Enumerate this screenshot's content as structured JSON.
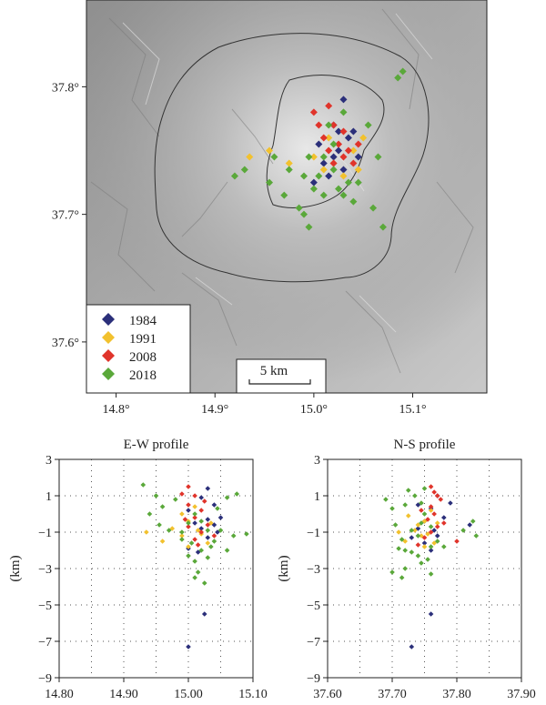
{
  "map": {
    "lon_range": [
      14.77,
      15.175
    ],
    "lat_range": [
      37.56,
      37.868
    ],
    "x_ticks": [
      14.8,
      14.9,
      15.0,
      15.1
    ],
    "x_tick_labels": [
      "14.8°",
      "14.9°",
      "15.0°",
      "15.1°"
    ],
    "y_ticks": [
      37.8,
      37.7,
      37.6
    ],
    "y_tick_labels": [
      "37.8°",
      "37.7°",
      "37.6°"
    ],
    "scale_label": "5 km",
    "legend": [
      {
        "label": "1984",
        "color": "#2b2f7a"
      },
      {
        "label": "1991",
        "color": "#f2c12e"
      },
      {
        "label": "2008",
        "color": "#e0342b"
      },
      {
        "label": "2018",
        "color": "#5aa83a"
      }
    ]
  },
  "chart_data": [
    {
      "type": "scatter",
      "title": "E-W profile",
      "xlabel": "",
      "ylabel": "(km)",
      "xlim": [
        14.8,
        15.1
      ],
      "ylim": [
        -9,
        3
      ],
      "x_tick_labels": [
        "14.80",
        "14.90",
        "15.00",
        "15.10"
      ],
      "y_tick_labels": [
        "3",
        "1",
        "−1",
        "−3",
        "−5",
        "−7",
        "−9"
      ],
      "grid": true,
      "series": [
        {
          "name": "1984",
          "color": "#2b2f7a",
          "points": [
            [
              15.0,
              -7.3
            ],
            [
              15.025,
              -5.5
            ],
            [
              15.03,
              1.4
            ],
            [
              15.02,
              0.9
            ],
            [
              15.04,
              0.5
            ],
            [
              15.03,
              -0.3
            ],
            [
              15.02,
              -0.8
            ],
            [
              15.03,
              -1.3
            ],
            [
              15.04,
              -0.6
            ],
            [
              15.0,
              -1.9
            ],
            [
              15.01,
              -0.5
            ],
            [
              15.05,
              -0.2
            ],
            [
              15.0,
              0.2
            ],
            [
              15.045,
              -1.0
            ],
            [
              15.015,
              -2.1
            ]
          ]
        },
        {
          "name": "1991",
          "color": "#f2c12e",
          "points": [
            [
              14.935,
              -1.0
            ],
            [
              14.96,
              -1.5
            ],
            [
              14.975,
              -0.8
            ],
            [
              14.99,
              -1.2
            ],
            [
              15.0,
              -0.4
            ],
            [
              15.01,
              0.4
            ],
            [
              15.02,
              -1.1
            ],
            [
              15.03,
              -1.6
            ],
            [
              15.0,
              -1.8
            ],
            [
              15.015,
              -0.9
            ],
            [
              14.99,
              0.0
            ],
            [
              15.035,
              -0.5
            ]
          ]
        },
        {
          "name": "2008",
          "color": "#e0342b",
          "points": [
            [
              15.0,
              1.5
            ],
            [
              15.01,
              1.0
            ],
            [
              15.0,
              0.5
            ],
            [
              15.02,
              0.2
            ],
            [
              15.01,
              -0.2
            ],
            [
              15.03,
              -0.6
            ],
            [
              15.0,
              -0.7
            ],
            [
              15.02,
              -1.0
            ],
            [
              15.01,
              -1.4
            ],
            [
              14.995,
              -0.3
            ],
            [
              15.025,
              0.7
            ],
            [
              15.04,
              -1.2
            ],
            [
              14.99,
              1.1
            ],
            [
              15.015,
              -1.7
            ]
          ]
        },
        {
          "name": "2018",
          "color": "#5aa83a",
          "points": [
            [
              14.93,
              1.6
            ],
            [
              14.95,
              1.0
            ],
            [
              14.96,
              0.4
            ],
            [
              14.94,
              0.0
            ],
            [
              14.955,
              -0.6
            ],
            [
              14.97,
              -0.9
            ],
            [
              14.99,
              -1.0
            ],
            [
              15.0,
              -0.5
            ],
            [
              15.01,
              0.0
            ],
            [
              15.02,
              -0.4
            ],
            [
              15.03,
              -0.9
            ],
            [
              15.04,
              -1.5
            ],
            [
              15.02,
              -2.0
            ],
            [
              15.0,
              -2.3
            ],
            [
              15.01,
              -3.5
            ],
            [
              15.015,
              -3.2
            ],
            [
              15.025,
              -3.8
            ],
            [
              15.05,
              -0.9
            ],
            [
              15.06,
              -2.0
            ],
            [
              15.07,
              -1.2
            ],
            [
              15.09,
              -1.1
            ],
            [
              15.06,
              0.9
            ],
            [
              15.075,
              1.1
            ],
            [
              14.99,
              -1.4
            ],
            [
              15.005,
              -1.6
            ],
            [
              15.035,
              -1.8
            ],
            [
              15.045,
              0.3
            ],
            [
              14.98,
              0.8
            ],
            [
              15.01,
              -2.6
            ],
            [
              15.03,
              -2.4
            ]
          ]
        }
      ]
    },
    {
      "type": "scatter",
      "title": "N-S profile",
      "xlabel": "",
      "ylabel": "(km)",
      "xlim": [
        37.6,
        37.9
      ],
      "ylim": [
        -9,
        3
      ],
      "x_tick_labels": [
        "37.60",
        "37.70",
        "37.80",
        "37.90"
      ],
      "y_tick_labels": [
        "3",
        "1",
        "−1",
        "−3",
        "−5",
        "−7",
        "−9"
      ],
      "grid": true,
      "series": [
        {
          "name": "1984",
          "color": "#2b2f7a",
          "points": [
            [
              37.73,
              -7.3
            ],
            [
              37.76,
              -5.5
            ],
            [
              37.82,
              -0.6
            ],
            [
              37.77,
              1.0
            ],
            [
              37.76,
              0.3
            ],
            [
              37.75,
              -0.4
            ],
            [
              37.74,
              -0.8
            ],
            [
              37.77,
              -1.2
            ],
            [
              37.78,
              -0.2
            ],
            [
              37.75,
              -1.6
            ],
            [
              37.76,
              -2.0
            ],
            [
              37.74,
              0.5
            ],
            [
              37.79,
              0.6
            ],
            [
              37.73,
              -1.3
            ],
            [
              37.765,
              -0.9
            ]
          ]
        },
        {
          "name": "1991",
          "color": "#f2c12e",
          "points": [
            [
              37.71,
              -1.0
            ],
            [
              37.72,
              -1.5
            ],
            [
              37.735,
              -0.9
            ],
            [
              37.745,
              -1.2
            ],
            [
              37.75,
              -0.4
            ],
            [
              37.76,
              0.2
            ],
            [
              37.755,
              -1.1
            ],
            [
              37.765,
              -1.6
            ],
            [
              37.75,
              -1.8
            ],
            [
              37.74,
              -0.6
            ],
            [
              37.725,
              -0.1
            ],
            [
              37.77,
              -0.5
            ]
          ]
        },
        {
          "name": "2008",
          "color": "#e0342b",
          "points": [
            [
              37.76,
              1.5
            ],
            [
              37.77,
              1.0
            ],
            [
              37.76,
              0.4
            ],
            [
              37.765,
              0.0
            ],
            [
              37.755,
              -0.3
            ],
            [
              37.77,
              -0.7
            ],
            [
              37.78,
              -0.5
            ],
            [
              37.76,
              -1.0
            ],
            [
              37.75,
              -1.3
            ],
            [
              37.745,
              0.2
            ],
            [
              37.775,
              0.8
            ],
            [
              37.8,
              -1.5
            ],
            [
              37.74,
              -1.7
            ],
            [
              37.765,
              1.2
            ]
          ]
        },
        {
          "name": "2018",
          "color": "#5aa83a",
          "points": [
            [
              37.69,
              0.8
            ],
            [
              37.7,
              0.3
            ],
            [
              37.705,
              -0.6
            ],
            [
              37.71,
              -1.9
            ],
            [
              37.72,
              -2.0
            ],
            [
              37.715,
              -1.4
            ],
            [
              37.73,
              -0.9
            ],
            [
              37.74,
              -1.2
            ],
            [
              37.745,
              -0.5
            ],
            [
              37.75,
              0.0
            ],
            [
              37.745,
              0.6
            ],
            [
              37.735,
              1.0
            ],
            [
              37.725,
              1.3
            ],
            [
              37.74,
              -2.3
            ],
            [
              37.745,
              -2.7
            ],
            [
              37.7,
              -3.2
            ],
            [
              37.715,
              -3.5
            ],
            [
              37.72,
              -3.0
            ],
            [
              37.76,
              -1.8
            ],
            [
              37.77,
              -1.5
            ],
            [
              37.78,
              -1.8
            ],
            [
              37.83,
              -1.2
            ],
            [
              37.825,
              -0.4
            ],
            [
              37.81,
              -0.9
            ],
            [
              37.755,
              -2.5
            ],
            [
              37.76,
              -0.7
            ],
            [
              37.73,
              -2.1
            ],
            [
              37.72,
              0.5
            ],
            [
              37.75,
              1.4
            ],
            [
              37.76,
              -3.3
            ]
          ]
        }
      ]
    }
  ],
  "map_points": {
    "1984": [
      [
        15.03,
        37.79
      ],
      [
        15.02,
        37.77
      ],
      [
        15.025,
        37.75
      ],
      [
        15.035,
        37.76
      ],
      [
        15.01,
        37.74
      ],
      [
        15.0,
        37.725
      ],
      [
        15.02,
        37.745
      ],
      [
        15.04,
        37.765
      ],
      [
        15.005,
        37.755
      ],
      [
        15.03,
        37.735
      ],
      [
        15.045,
        37.745
      ],
      [
        15.015,
        37.73
      ],
      [
        15.025,
        37.765
      ]
    ],
    "1991": [
      [
        14.955,
        37.75
      ],
      [
        14.935,
        37.745
      ],
      [
        14.975,
        37.74
      ],
      [
        15.0,
        37.745
      ],
      [
        15.02,
        37.74
      ],
      [
        15.03,
        37.73
      ],
      [
        15.04,
        37.75
      ],
      [
        15.045,
        37.735
      ],
      [
        15.05,
        37.76
      ],
      [
        15.01,
        37.735
      ],
      [
        15.015,
        37.76
      ]
    ],
    "2008": [
      [
        15.015,
        37.785
      ],
      [
        15.02,
        37.77
      ],
      [
        15.03,
        37.765
      ],
      [
        15.035,
        37.75
      ],
      [
        15.025,
        37.755
      ],
      [
        15.01,
        37.76
      ],
      [
        15.02,
        37.74
      ],
      [
        15.04,
        37.74
      ],
      [
        15.005,
        37.77
      ],
      [
        15.03,
        37.745
      ],
      [
        15.015,
        37.75
      ],
      [
        15.045,
        37.755
      ],
      [
        15.0,
        37.78
      ]
    ],
    "2018": [
      [
        15.09,
        37.812
      ],
      [
        15.085,
        37.807
      ],
      [
        14.93,
        37.735
      ],
      [
        14.92,
        37.73
      ],
      [
        14.955,
        37.725
      ],
      [
        14.97,
        37.715
      ],
      [
        14.985,
        37.705
      ],
      [
        14.99,
        37.7
      ],
      [
        14.995,
        37.69
      ],
      [
        15.0,
        37.72
      ],
      [
        15.005,
        37.73
      ],
      [
        15.01,
        37.745
      ],
      [
        15.02,
        37.735
      ],
      [
        15.025,
        37.72
      ],
      [
        15.035,
        37.725
      ],
      [
        15.04,
        37.71
      ],
      [
        15.045,
        37.725
      ],
      [
        15.06,
        37.705
      ],
      [
        15.065,
        37.745
      ],
      [
        15.07,
        37.69
      ],
      [
        15.055,
        37.77
      ],
      [
        15.03,
        37.78
      ],
      [
        15.015,
        37.77
      ],
      [
        14.975,
        37.735
      ],
      [
        14.995,
        37.745
      ],
      [
        15.01,
        37.715
      ],
      [
        15.03,
        37.715
      ],
      [
        14.96,
        37.745
      ],
      [
        14.99,
        37.73
      ],
      [
        15.02,
        37.755
      ]
    ]
  }
}
